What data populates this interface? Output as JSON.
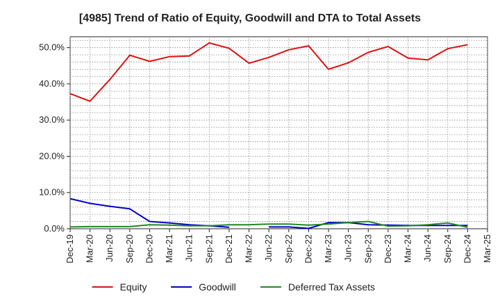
{
  "chart_data": {
    "type": "line",
    "title": "[4985]  Trend of Ratio of Equity, Goodwill and DTA to Total Assets",
    "xlabel": "",
    "ylabel": "",
    "ylim": [
      0,
      53
    ],
    "y_ticks": [
      "0.0%",
      "10.0%",
      "20.0%",
      "30.0%",
      "40.0%",
      "50.0%"
    ],
    "y_tick_values": [
      0,
      10,
      20,
      30,
      40,
      50
    ],
    "grid": true,
    "legend_position": "bottom",
    "categories": [
      "Dec-19",
      "Mar-20",
      "Jun-20",
      "Sep-20",
      "Dec-20",
      "Mar-21",
      "Jun-21",
      "Sep-21",
      "Dec-21",
      "Mar-22",
      "Jun-22",
      "Sep-22",
      "Dec-22",
      "Mar-23",
      "Jun-23",
      "Sep-23",
      "Dec-23",
      "Mar-24",
      "Jun-24",
      "Sep-24",
      "Dec-24",
      "Mar-25"
    ],
    "series": [
      {
        "name": "Equity",
        "color": "#dd1111",
        "values": [
          37.3,
          35.2,
          41.2,
          47.9,
          46.2,
          47.5,
          47.7,
          51.3,
          49.8,
          45.7,
          47.3,
          49.4,
          50.5,
          44.0,
          45.8,
          48.7,
          50.3,
          47.1,
          46.6,
          49.7,
          50.8,
          null
        ]
      },
      {
        "name": "Goodwill",
        "color": "#0000cc",
        "values": [
          8.3,
          7.0,
          6.2,
          5.5,
          2.0,
          1.6,
          1.1,
          0.8,
          0.4,
          null,
          0.5,
          0.5,
          0.1,
          1.7,
          1.7,
          1.1,
          1.0,
          0.9,
          0.9,
          0.9,
          0.9,
          null
        ]
      },
      {
        "name": "Deferred Tax Assets",
        "color": "#228822",
        "values": [
          0.5,
          0.6,
          0.6,
          0.6,
          1.1,
          1.0,
          0.8,
          0.8,
          1.1,
          1.1,
          1.3,
          1.3,
          1.0,
          1.3,
          1.7,
          2.0,
          0.7,
          0.8,
          1.1,
          1.6,
          0.4,
          null
        ]
      }
    ]
  }
}
